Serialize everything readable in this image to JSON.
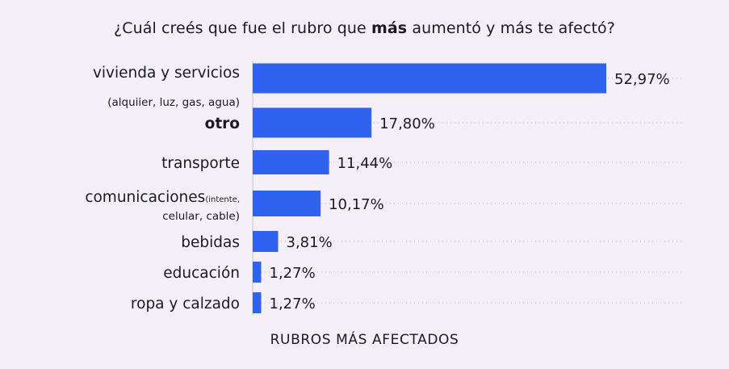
{
  "chart_data": {
    "type": "bar",
    "orientation": "horizontal",
    "title_parts": [
      "¿Cuál creés que fue el rubro que ",
      "más",
      " aumentó y más te afectó?"
    ],
    "xlabel": "RUBROS MÁS AFECTADOS",
    "ylabel": "",
    "xlim": [
      0,
      60
    ],
    "grid": "dotted-horizontal",
    "bar_color": "#2f62ee",
    "categories": [
      {
        "label": "vivienda y servicios",
        "sublabel": "(alquiier, luz, gas, agua)",
        "bold": false
      },
      {
        "label": "otro",
        "sublabel": "",
        "bold": true
      },
      {
        "label": "transporte",
        "sublabel": "",
        "bold": false
      },
      {
        "label": "comunicaciones",
        "label_small": "(intente,",
        "sublabel": "celular, cable)",
        "bold": false
      },
      {
        "label": "bebidas",
        "sublabel": "",
        "bold": false
      },
      {
        "label": "educación",
        "sublabel": "",
        "bold": false
      },
      {
        "label": "ropa y calzado",
        "sublabel": "",
        "bold": false
      }
    ],
    "values": [
      52.97,
      17.8,
      11.44,
      10.17,
      3.81,
      1.27,
      1.27
    ],
    "value_labels": [
      "52,97%",
      "17,80%",
      "11,44%",
      "10,17%",
      "3,81%",
      "1,27%",
      "1,27%"
    ]
  }
}
